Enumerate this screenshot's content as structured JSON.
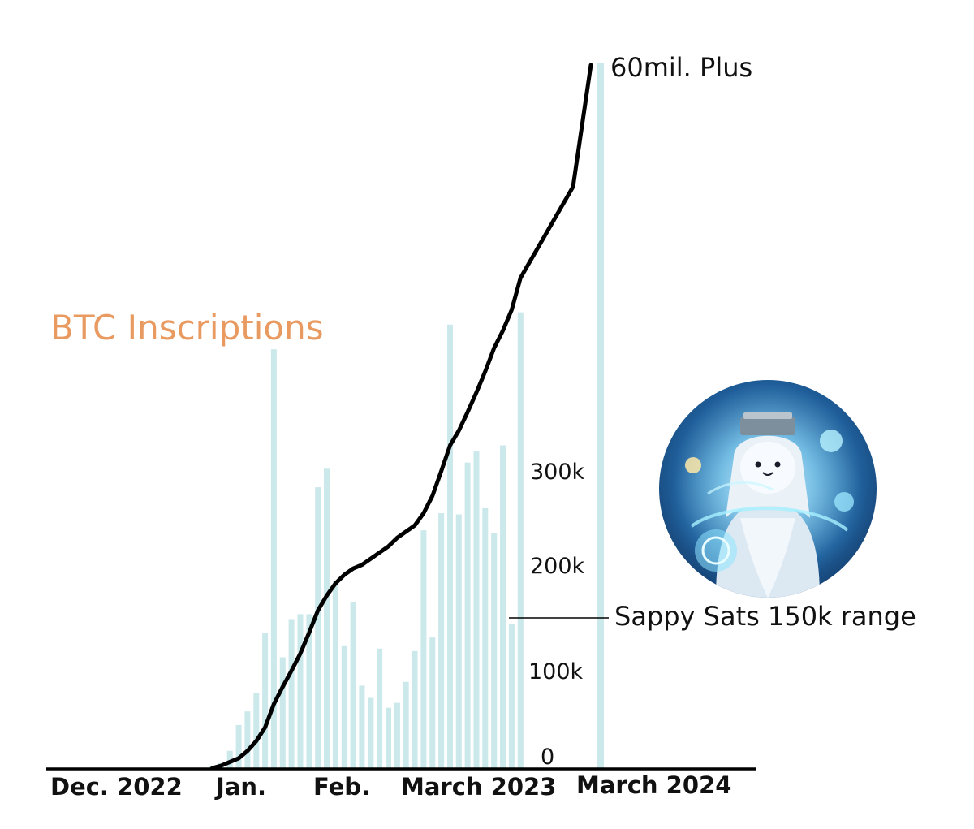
{
  "chart_data": {
    "type": "bar",
    "title": "BTC Inscriptions",
    "x_ticks": [
      "Dec. 2022",
      "Jan.",
      "Feb.",
      "March 2023",
      "March 2024"
    ],
    "y_ticks": [
      "0",
      "100k",
      "200k",
      "300k"
    ],
    "ylim": [
      0,
      350000
    ],
    "series": [
      {
        "type": "bar",
        "values": [
          2000,
          4000,
          14000,
          35000,
          46000,
          61000,
          110000,
          340000,
          90000,
          121000,
          125000,
          125000,
          228000,
          243000,
          152000,
          99000,
          135000,
          67000,
          57000,
          97000,
          49000,
          53000,
          70000,
          95000,
          193000,
          106000,
          207000,
          360000,
          206000,
          248000,
          257000,
          211000,
          191000,
          262000,
          117000,
          370000
        ]
      },
      {
        "type": "line",
        "values": [
          0,
          2000,
          5000,
          8000,
          14000,
          22000,
          33000,
          52000,
          66000,
          79000,
          93000,
          110000,
          128000,
          140000,
          150000,
          157000,
          162000,
          165000,
          170000,
          175000,
          180000,
          187000,
          192000,
          197000,
          207000,
          221000,
          241000,
          262000,
          274000,
          289000,
          305000,
          322000,
          341000,
          355000,
          372000,
          398000
        ]
      }
    ],
    "annotations": {
      "top": "60mil. Plus",
      "range": "Sappy Sats 150k range"
    },
    "colors": {
      "bars": "#cbe8eb",
      "line": "#000000",
      "title": "#e89a61",
      "axis": "#000000"
    },
    "grid": false,
    "legend": "none"
  },
  "avatar": {
    "icon": "sappy-seal-mage-icon"
  }
}
